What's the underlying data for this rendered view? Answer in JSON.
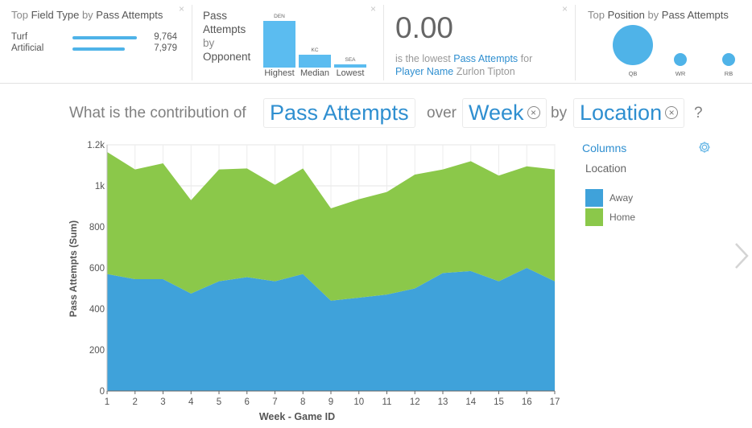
{
  "cards": {
    "field_type": {
      "title_prefix": "Top ",
      "title_hl1": "Field Type",
      "title_mid": " by ",
      "title_hl2": "Pass Attempts",
      "rows": [
        {
          "label": "Turf",
          "value": "9,764",
          "fill": 1.0
        },
        {
          "label": "Artificial",
          "value": "7,979",
          "fill": 0.817
        }
      ],
      "close": "×"
    },
    "opponent": {
      "title_l1": "Pass",
      "title_l2": "Attempts",
      "title_l3": "by",
      "title_l4": "Opponent",
      "bars": [
        {
          "team": "DEN",
          "label": "Highest",
          "fill": 1.0
        },
        {
          "team": "KC",
          "label": "Median",
          "fill": 0.28
        },
        {
          "team": "SEA",
          "label": "Lowest",
          "fill": 0.07
        }
      ],
      "close": "×"
    },
    "lowest": {
      "value": "0.00",
      "line1_prefix": "is the lowest ",
      "line1_hl": "Pass Attempts",
      "line1_suffix": " for",
      "line2_hl": "Player Name",
      "line2_value": " Zurlon Tipton",
      "close": "×"
    },
    "position": {
      "title_prefix": "Top ",
      "title_hl1": "Position",
      "title_mid": " by ",
      "title_hl2": "Pass Attempts",
      "bubbles": [
        {
          "label": "QB",
          "relative_size": 1.0
        },
        {
          "label": "WR",
          "relative_size": 0.32
        },
        {
          "label": "RB",
          "relative_size": 0.32
        }
      ]
    }
  },
  "question": {
    "prefix": "What is the contribution of",
    "measure": "Pass Attempts",
    "over": "over",
    "dimension": "Week",
    "by": "by",
    "split": "Location",
    "suffix": "?",
    "remove": "×"
  },
  "panel": {
    "columns_label": "Columns",
    "gear_icon": "gear-icon",
    "field_label": "Location"
  },
  "colors": {
    "accent": "#2f8fd0",
    "away": "#3fa2da",
    "home": "#8bc84a",
    "card_bar": "#4fb3e8"
  },
  "chart_data": {
    "type": "area",
    "stacked": true,
    "xlabel": "Week - Game ID",
    "ylabel": "Pass Attempts (Sum)",
    "x": [
      1,
      2,
      3,
      4,
      5,
      6,
      7,
      8,
      9,
      10,
      11,
      12,
      13,
      14,
      15,
      16,
      17
    ],
    "ylim": [
      0,
      1200
    ],
    "yticks": [
      0,
      200,
      400,
      600,
      800,
      1000,
      1200
    ],
    "ytick_labels": [
      "0",
      "200",
      "400",
      "600",
      "800",
      "1k",
      "1.2k"
    ],
    "grid": true,
    "legend_position": "right",
    "series": [
      {
        "name": "Away",
        "color": "#3fa2da",
        "values": [
          570,
          545,
          545,
          475,
          535,
          555,
          535,
          570,
          440,
          455,
          470,
          500,
          575,
          585,
          535,
          600,
          535
        ]
      },
      {
        "name": "Home",
        "color": "#8bc84a",
        "values": [
          595,
          535,
          565,
          455,
          545,
          530,
          470,
          515,
          450,
          480,
          500,
          555,
          505,
          535,
          515,
          495,
          545
        ]
      }
    ]
  }
}
